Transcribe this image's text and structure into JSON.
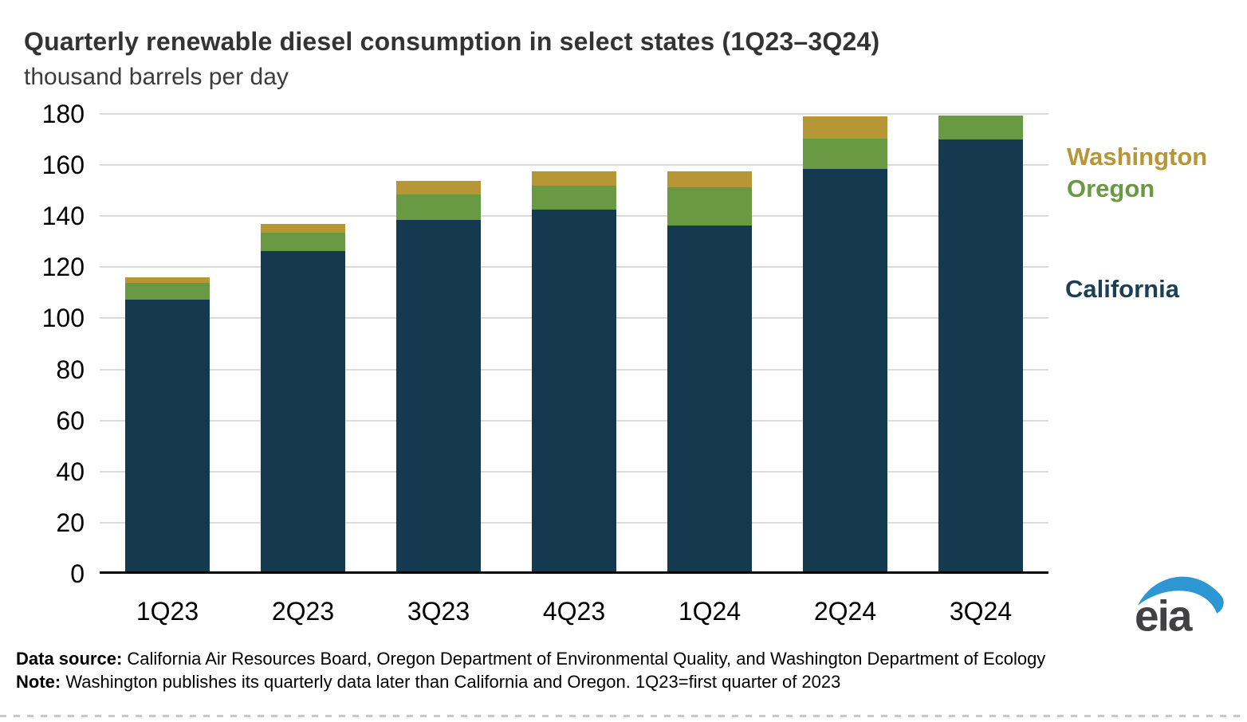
{
  "header": {
    "title": "Quarterly renewable diesel consumption in select states (1Q23–3Q24)",
    "subtitle": "thousand barrels per day"
  },
  "chart_data": {
    "type": "bar",
    "stacked": true,
    "title": "Quarterly renewable diesel consumption in select states (1Q23–3Q24)",
    "ylabel": "thousand barrels per day",
    "xlabel": "",
    "categories": [
      "1Q23",
      "2Q23",
      "3Q23",
      "4Q23",
      "1Q24",
      "2Q24",
      "3Q24"
    ],
    "series": [
      {
        "name": "California",
        "color": "#15394F",
        "values": [
          106.5,
          125.5,
          137.5,
          141.5,
          135.5,
          157.5,
          169
        ]
      },
      {
        "name": "Oregon",
        "color": "#699943",
        "values": [
          6.5,
          7,
          10,
          9.5,
          15,
          12,
          9.5
        ]
      },
      {
        "name": "Washington",
        "color": "#B79735",
        "values": [
          2,
          3.5,
          5.5,
          5.5,
          6,
          8.5,
          0
        ]
      }
    ],
    "totals": [
      115,
      136,
      153,
      156.5,
      156.5,
      178,
      178.5
    ],
    "ylim": [
      0,
      180
    ],
    "yticks": [
      0,
      20,
      40,
      60,
      80,
      100,
      120,
      140,
      160,
      180
    ],
    "grid": true,
    "gridline_color": "#DBDBDB",
    "legend_position": "right"
  },
  "footer": {
    "source_label": "Data source:",
    "source_text": " California Air Resources Board, Oregon Department of Environmental Quality, and Washington Department of Ecology",
    "note_label": "Note:",
    "note_text": " Washington publishes its quarterly data later than California and Oregon. 1Q23=first quarter of 2023"
  },
  "logo": {
    "text": "eia",
    "swoosh_color": "#2E96D2",
    "text_color": "#414042"
  }
}
